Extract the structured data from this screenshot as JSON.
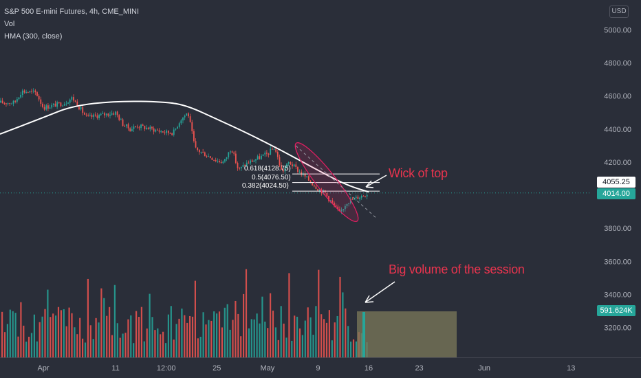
{
  "legend": {
    "symbol": "S&P 500 E-mini Futures, 4h, CME_MINI",
    "volume": "Vol",
    "hma": "HMA (300, close)"
  },
  "currency": "USD",
  "price_tags": {
    "cursor_price": "4055.25",
    "last_price": "4014.00",
    "volume_value": "591.624K"
  },
  "annotations": {
    "wick": "Wick of top",
    "volume": "Big volume of the session"
  },
  "fib_levels": [
    {
      "label": "0.618(4128.75)",
      "value": 4128.75
    },
    {
      "label": "0.5(4076.50)",
      "value": 4076.5
    },
    {
      "label": "0.382(4024.50)",
      "value": 4024.5
    }
  ],
  "colors": {
    "background": "#2a2e39",
    "up": "#26a69a",
    "down": "#ef5350",
    "hma": "#ffffff",
    "ellipse": "#e91e63",
    "volume_box": "#7c7a5a",
    "annotation": "#e8344e"
  },
  "chart_data": {
    "type": "candlestick",
    "title": "S&P 500 E-mini Futures, 4h, CME_MINI",
    "y_ticks": [
      3200,
      3400,
      3600,
      3800,
      4000,
      4200,
      4400,
      4600,
      4800,
      5000
    ],
    "y_tick_labels": [
      "3200.00",
      "3400.00",
      "3600.00",
      "3800.00",
      "4000.00",
      "4200.00",
      "4400.00",
      "4600.00",
      "4800.00",
      "5000.00"
    ],
    "ylim": [
      3100,
      5060
    ],
    "x_ticks": [
      {
        "label": "Apr",
        "date": "2022-04-01"
      },
      {
        "label": "11",
        "date": "2022-04-11"
      },
      {
        "label": "12:00",
        "date": "2022-04-18"
      },
      {
        "label": "25",
        "date": "2022-04-25"
      },
      {
        "label": "May",
        "date": "2022-05-02"
      },
      {
        "label": "9",
        "date": "2022-05-09"
      },
      {
        "label": "16",
        "date": "2022-05-16"
      },
      {
        "label": "23",
        "date": "2022-05-23"
      },
      {
        "label": "Jun",
        "date": "2022-06-01"
      },
      {
        "label": "13",
        "date": "2022-06-13"
      }
    ],
    "price_path": [
      {
        "date": "2022-03-28",
        "price": 4560
      },
      {
        "date": "2022-03-29",
        "price": 4630
      },
      {
        "date": "2022-03-31",
        "price": 4620
      },
      {
        "date": "2022-04-01",
        "price": 4530
      },
      {
        "date": "2022-04-04",
        "price": 4560
      },
      {
        "date": "2022-04-05",
        "price": 4590
      },
      {
        "date": "2022-04-07",
        "price": 4470
      },
      {
        "date": "2022-04-11",
        "price": 4500
      },
      {
        "date": "2022-04-12",
        "price": 4430
      },
      {
        "date": "2022-04-13",
        "price": 4400
      },
      {
        "date": "2022-04-14",
        "price": 4420
      },
      {
        "date": "2022-04-18",
        "price": 4380
      },
      {
        "date": "2022-04-19",
        "price": 4380
      },
      {
        "date": "2022-04-20",
        "price": 4460
      },
      {
        "date": "2022-04-21",
        "price": 4500
      },
      {
        "date": "2022-04-22",
        "price": 4280
      },
      {
        "date": "2022-04-25",
        "price": 4210
      },
      {
        "date": "2022-04-26",
        "price": 4200
      },
      {
        "date": "2022-04-27",
        "price": 4290
      },
      {
        "date": "2022-04-28",
        "price": 4150
      },
      {
        "date": "2022-04-29",
        "price": 4190
      },
      {
        "date": "2022-05-02",
        "price": 4250
      },
      {
        "date": "2022-05-03",
        "price": 4290
      },
      {
        "date": "2022-05-04",
        "price": 4140
      },
      {
        "date": "2022-05-05",
        "price": 4200
      },
      {
        "date": "2022-05-06",
        "price": 4160
      },
      {
        "date": "2022-05-09",
        "price": 4040
      },
      {
        "date": "2022-05-10",
        "price": 4010
      },
      {
        "date": "2022-05-11",
        "price": 3950
      },
      {
        "date": "2022-05-12",
        "price": 3890
      },
      {
        "date": "2022-05-13",
        "price": 3960
      },
      {
        "date": "2022-05-16",
        "price": 4014
      }
    ],
    "hma_series": {
      "name": "HMA (300, close)",
      "points": [
        {
          "date": "2022-03-28",
          "value": 4370
        },
        {
          "date": "2022-04-01",
          "value": 4470
        },
        {
          "date": "2022-04-05",
          "value": 4540
        },
        {
          "date": "2022-04-11",
          "value": 4570
        },
        {
          "date": "2022-04-18",
          "value": 4565
        },
        {
          "date": "2022-04-21",
          "value": 4540
        },
        {
          "date": "2022-04-25",
          "value": 4460
        },
        {
          "date": "2022-04-29",
          "value": 4380
        },
        {
          "date": "2022-05-04",
          "value": 4270
        },
        {
          "date": "2022-05-09",
          "value": 4150
        },
        {
          "date": "2022-05-13",
          "value": 4060
        },
        {
          "date": "2022-05-16",
          "value": 4020
        }
      ]
    },
    "volume": {
      "last_value": "591.624K",
      "tall_bar_dates": [
        "2022-04-07",
        "2022-04-22",
        "2022-04-29",
        "2022-05-05",
        "2022-05-09",
        "2022-05-12",
        "2022-05-16"
      ]
    },
    "grid": false,
    "legend_position": "top-left"
  }
}
